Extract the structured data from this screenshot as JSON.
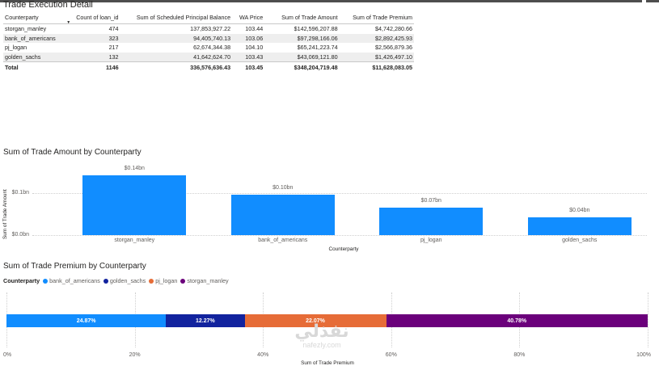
{
  "colors": {
    "bank_of_americans": "#118dff",
    "golden_sachs": "#12239e",
    "pj_logan": "#e66c37",
    "storgan_manley": "#6b007b",
    "top_strip": "#4e4e4e"
  },
  "table": {
    "title": "Trade Execution Detail",
    "headers": [
      "Counterparty",
      "Count of loan_id",
      "Sum of Scheduled Principal Balance",
      "WA Price",
      "Sum of Trade Amount",
      "Sum of Trade Premium"
    ],
    "sort_icon": "sort-desc-icon",
    "rows": [
      {
        "counterparty": "storgan_manley",
        "count": "474",
        "principal": "137,853,927.22",
        "wa_price": "103.44",
        "trade_amount": "$142,596,207.88",
        "trade_premium": "$4,742,280.66"
      },
      {
        "counterparty": "bank_of_americans",
        "count": "323",
        "principal": "94,405,740.13",
        "wa_price": "103.06",
        "trade_amount": "$97,298,166.06",
        "trade_premium": "$2,892,425.93"
      },
      {
        "counterparty": "pj_logan",
        "count": "217",
        "principal": "62,674,344.38",
        "wa_price": "104.10",
        "trade_amount": "$65,241,223.74",
        "trade_premium": "$2,566,879.36"
      },
      {
        "counterparty": "golden_sachs",
        "count": "132",
        "principal": "41,642,624.70",
        "wa_price": "103.43",
        "trade_amount": "$43,069,121.80",
        "trade_premium": "$1,426,497.10"
      }
    ],
    "total": {
      "label": "Total",
      "count": "1146",
      "principal": "336,576,636.43",
      "wa_price": "103.45",
      "trade_amount": "$348,204,719.48",
      "trade_premium": "$11,628,083.05"
    }
  },
  "chart_data": [
    {
      "type": "bar",
      "title": "Sum of Trade Amount by Counterparty",
      "xlabel": "Counterparty",
      "ylabel": "Sum of Trade Amount",
      "categories": [
        "storgan_manley",
        "bank_of_americans",
        "pj_logan",
        "golden_sachs"
      ],
      "values": [
        142596207.88,
        97298166.06,
        65241223.74,
        43069121.8
      ],
      "data_labels": [
        "$0.14bn",
        "$0.10bn",
        "$0.07bn",
        "$0.04bn"
      ],
      "yticks": [
        "$0.0bn",
        "$0.1bn"
      ],
      "ylim": [
        0,
        150000000
      ],
      "grid": true
    },
    {
      "type": "bar",
      "orientation": "horizontal-100%-stacked",
      "title": "Sum of Trade Premium by Counterparty",
      "legend_title": "Counterparty",
      "legend_placement": "top-left",
      "xlabel": "Sum of Trade Premium",
      "series": [
        {
          "name": "bank_of_americans",
          "value": 24.87,
          "label": "24.87%"
        },
        {
          "name": "golden_sachs",
          "value": 12.27,
          "label": "12.27%"
        },
        {
          "name": "pj_logan",
          "value": 22.07,
          "label": "22.07%"
        },
        {
          "name": "storgan_manley",
          "value": 40.78,
          "label": "40.78%"
        }
      ],
      "xticks": [
        "0%",
        "20%",
        "40%",
        "60%",
        "80%",
        "100%"
      ],
      "xlim": [
        0,
        100
      ],
      "grid": true
    }
  ],
  "watermark": {
    "arabic": "نفذلي",
    "latin": "nafezly.com"
  }
}
